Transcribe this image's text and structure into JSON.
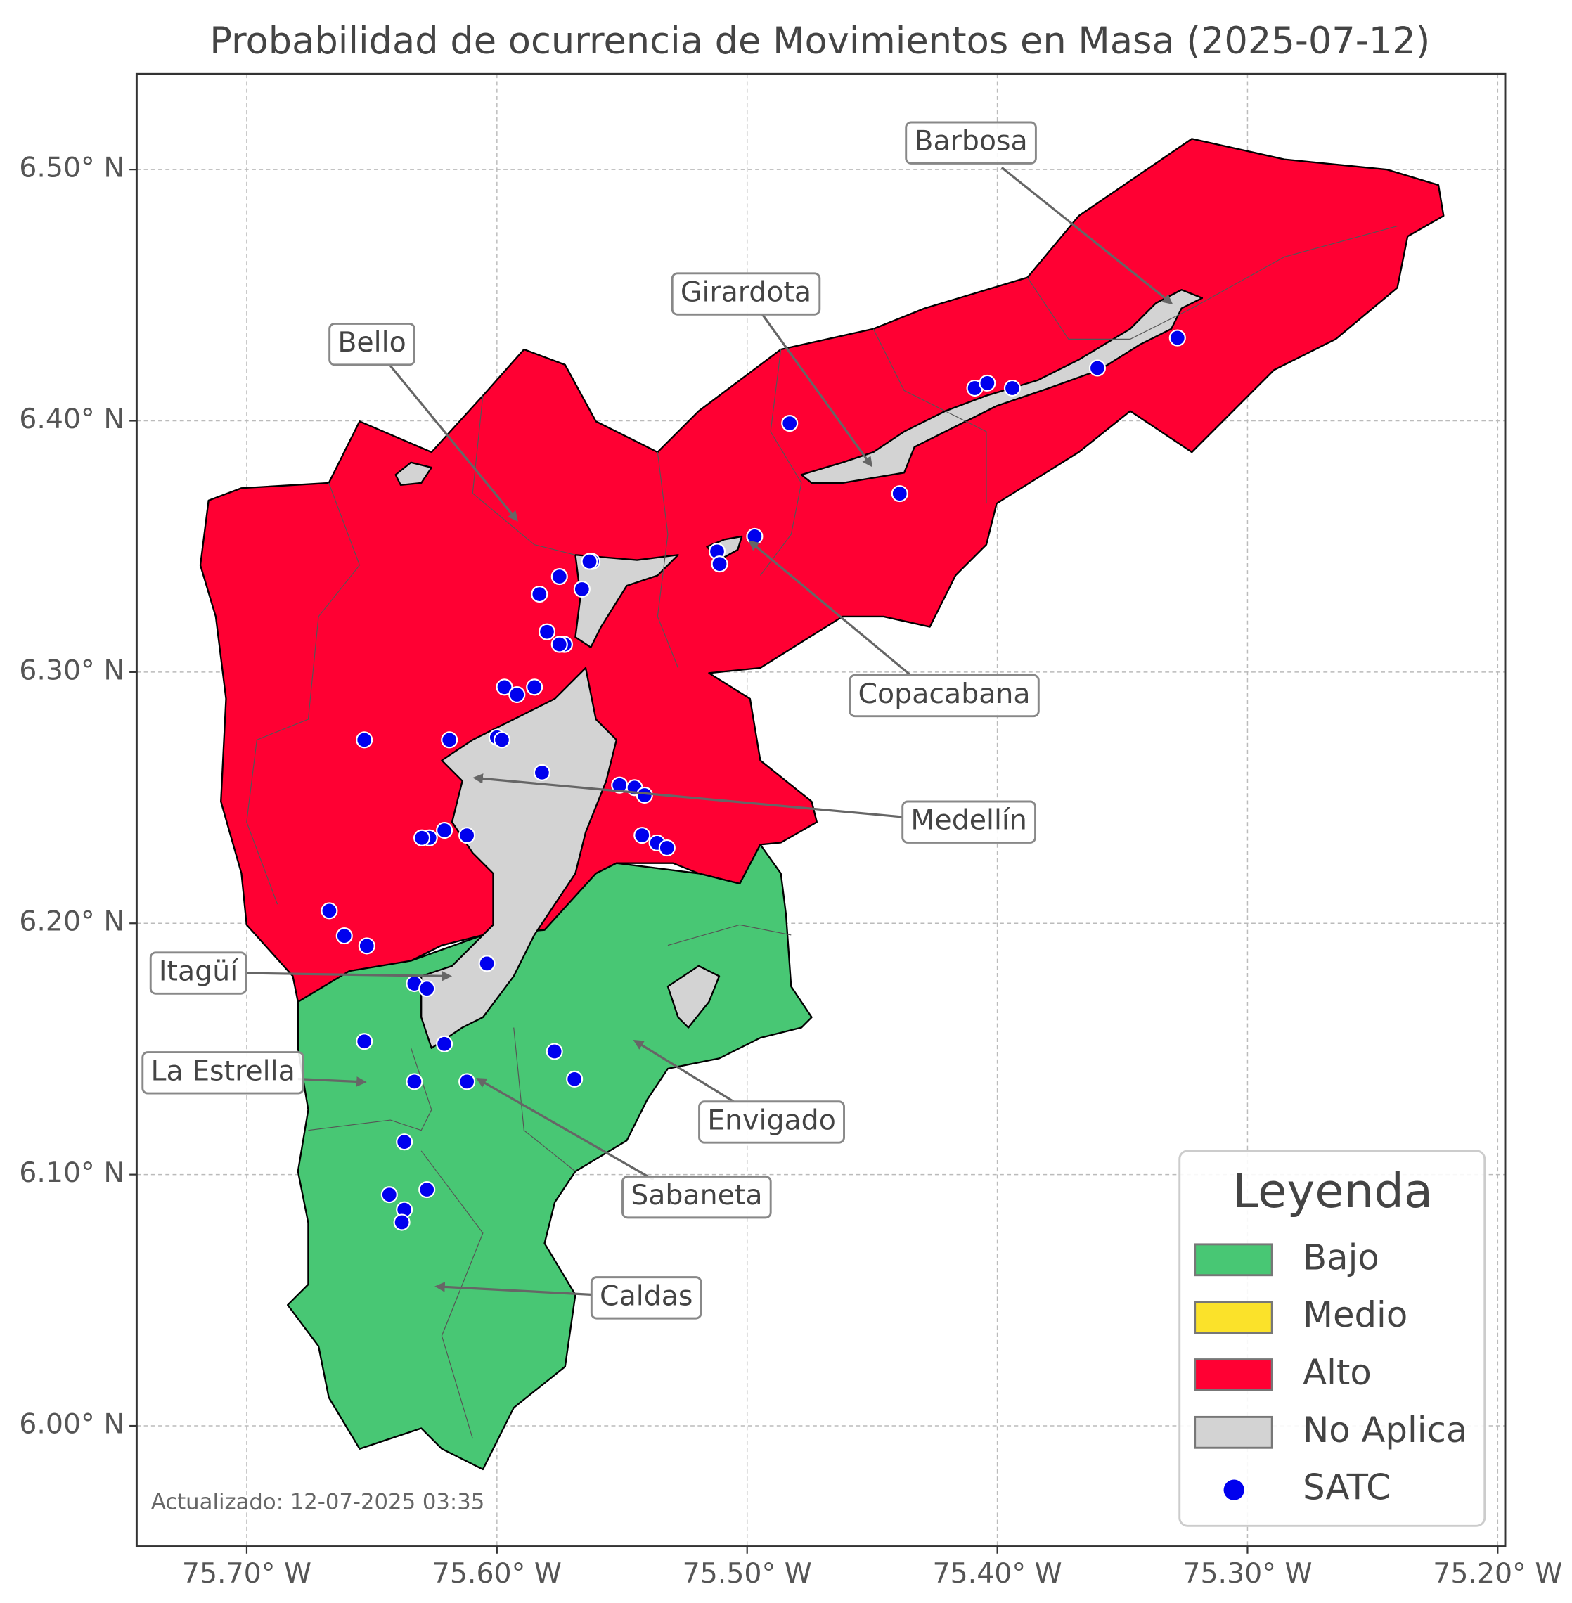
{
  "map": {
    "title": "Probabilidad de ocurrencia de Movimientos en Masa (2025-07-12)",
    "updated": "Actualizado: 12-07-2025 03:35",
    "xlim": [
      -75.744,
      -75.197
    ],
    "ylim": [
      5.952,
      6.538
    ],
    "xticks": [
      {
        "value": -75.7,
        "label": "75.70° W"
      },
      {
        "value": -75.6,
        "label": "75.60° W"
      },
      {
        "value": -75.5,
        "label": "75.50° W"
      },
      {
        "value": -75.4,
        "label": "75.40° W"
      },
      {
        "value": -75.3,
        "label": "75.30° W"
      },
      {
        "value": -75.2,
        "label": "75.20° W"
      }
    ],
    "yticks": [
      {
        "value": 6.0,
        "label": "6.00° N"
      },
      {
        "value": 6.1,
        "label": "6.10° N"
      },
      {
        "value": 6.2,
        "label": "6.20° N"
      },
      {
        "value": 6.3,
        "label": "6.30° N"
      },
      {
        "value": 6.4,
        "label": "6.40° N"
      },
      {
        "value": 6.5,
        "label": "6.50° N"
      }
    ],
    "grid": true,
    "legend": {
      "title": "Leyenda",
      "entries": [
        {
          "name": "Bajo",
          "color": "#48c774"
        },
        {
          "name": "Medio",
          "color": "#fbe22a"
        },
        {
          "name": "Alto",
          "color": "#ff0033"
        },
        {
          "name": "No Aplica",
          "color": "#d3d3d3"
        },
        {
          "name": "SATC",
          "color": "#0000ee"
        }
      ]
    },
    "annotations": [
      "Barbosa",
      "Girardota",
      "Bello",
      "Copacabana",
      "Medellín",
      "Itagüí",
      "La Estrella",
      "Envigado",
      "Sabaneta",
      "Caldas"
    ],
    "satc": {
      "lon": [
        -75.483,
        -75.409,
        -75.404,
        -75.394,
        -75.36,
        -75.328,
        -75.439,
        -75.497,
        -75.512,
        -75.511,
        -75.562,
        -75.563,
        -75.575,
        -75.583,
        -75.566,
        -75.58,
        -75.573,
        -75.575,
        -75.597,
        -75.592,
        -75.585,
        -75.6,
        -75.598,
        -75.619,
        -75.653,
        -75.582,
        -75.551,
        -75.545,
        -75.541,
        -75.542,
        -75.536,
        -75.532,
        -75.621,
        -75.627,
        -75.63,
        -75.612,
        -75.667,
        -75.661,
        -75.652,
        -75.604,
        -75.633,
        -75.628,
        -75.653,
        -75.621,
        -75.577,
        -75.569,
        -75.633,
        -75.612,
        -75.637,
        -75.643,
        -75.628,
        -75.637,
        -75.638
      ],
      "lat": [
        6.399,
        6.413,
        6.415,
        6.413,
        6.421,
        6.433,
        6.371,
        6.354,
        6.348,
        6.343,
        6.344,
        6.344,
        6.338,
        6.331,
        6.333,
        6.316,
        6.311,
        6.311,
        6.294,
        6.291,
        6.294,
        6.274,
        6.273,
        6.273,
        6.273,
        6.26,
        6.255,
        6.254,
        6.251,
        6.235,
        6.232,
        6.23,
        6.237,
        6.234,
        6.234,
        6.235,
        6.205,
        6.195,
        6.191,
        6.184,
        6.176,
        6.174,
        6.153,
        6.152,
        6.149,
        6.138,
        6.137,
        6.137,
        6.113,
        6.092,
        6.094,
        6.086,
        6.081
      ]
    }
  }
}
